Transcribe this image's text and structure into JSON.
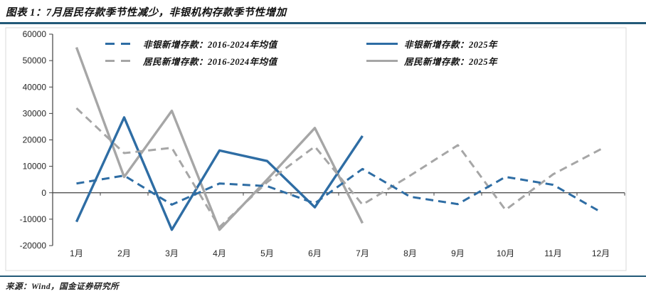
{
  "header": {
    "title": "图表 1：7月居民存款季节性减少，非银机构存款季节性增加"
  },
  "footer": {
    "source": "来源：Wind，国金证券研究所"
  },
  "colors": {
    "blue": "#2e6da4",
    "gray": "#a6a6a6",
    "rule": "#235a78",
    "axis": "#404040",
    "frame": "#d9d9d9",
    "label": "#262626"
  },
  "chart_data": {
    "type": "line",
    "categories": [
      "1月",
      "2月",
      "3月",
      "4月",
      "5月",
      "6月",
      "7月",
      "8月",
      "9月",
      "10月",
      "11月",
      "12月"
    ],
    "series": [
      {
        "name": "非银新增存款：2016-2024年均值",
        "color_key": "blue",
        "style": "dashed",
        "values": [
          3500,
          6500,
          -4500,
          3500,
          2500,
          -4000,
          9000,
          -1500,
          -4300,
          6000,
          3000,
          -7300
        ]
      },
      {
        "name": "非银新增存款：2025年",
        "color_key": "blue",
        "style": "solid",
        "values": [
          -11000,
          28500,
          -14000,
          16000,
          12000,
          -5500,
          21500
        ]
      },
      {
        "name": "居民新增存款：2016-2024年均值",
        "color_key": "gray",
        "style": "dashed",
        "values": [
          32000,
          15000,
          17000,
          -13000,
          4000,
          17500,
          -4500,
          6500,
          18000,
          -6500,
          7000,
          16500
        ]
      },
      {
        "name": "居民新增存款：2025年",
        "color_key": "gray",
        "style": "solid",
        "values": [
          55000,
          6000,
          31000,
          -14000,
          5000,
          24500,
          -11500
        ]
      }
    ],
    "ylim": [
      -20000,
      60000
    ],
    "yticks": [
      60000,
      50000,
      40000,
      30000,
      20000,
      10000,
      0,
      -10000,
      -20000
    ],
    "xlabel": "",
    "ylabel": "",
    "grid": false,
    "legend_position": "top"
  }
}
